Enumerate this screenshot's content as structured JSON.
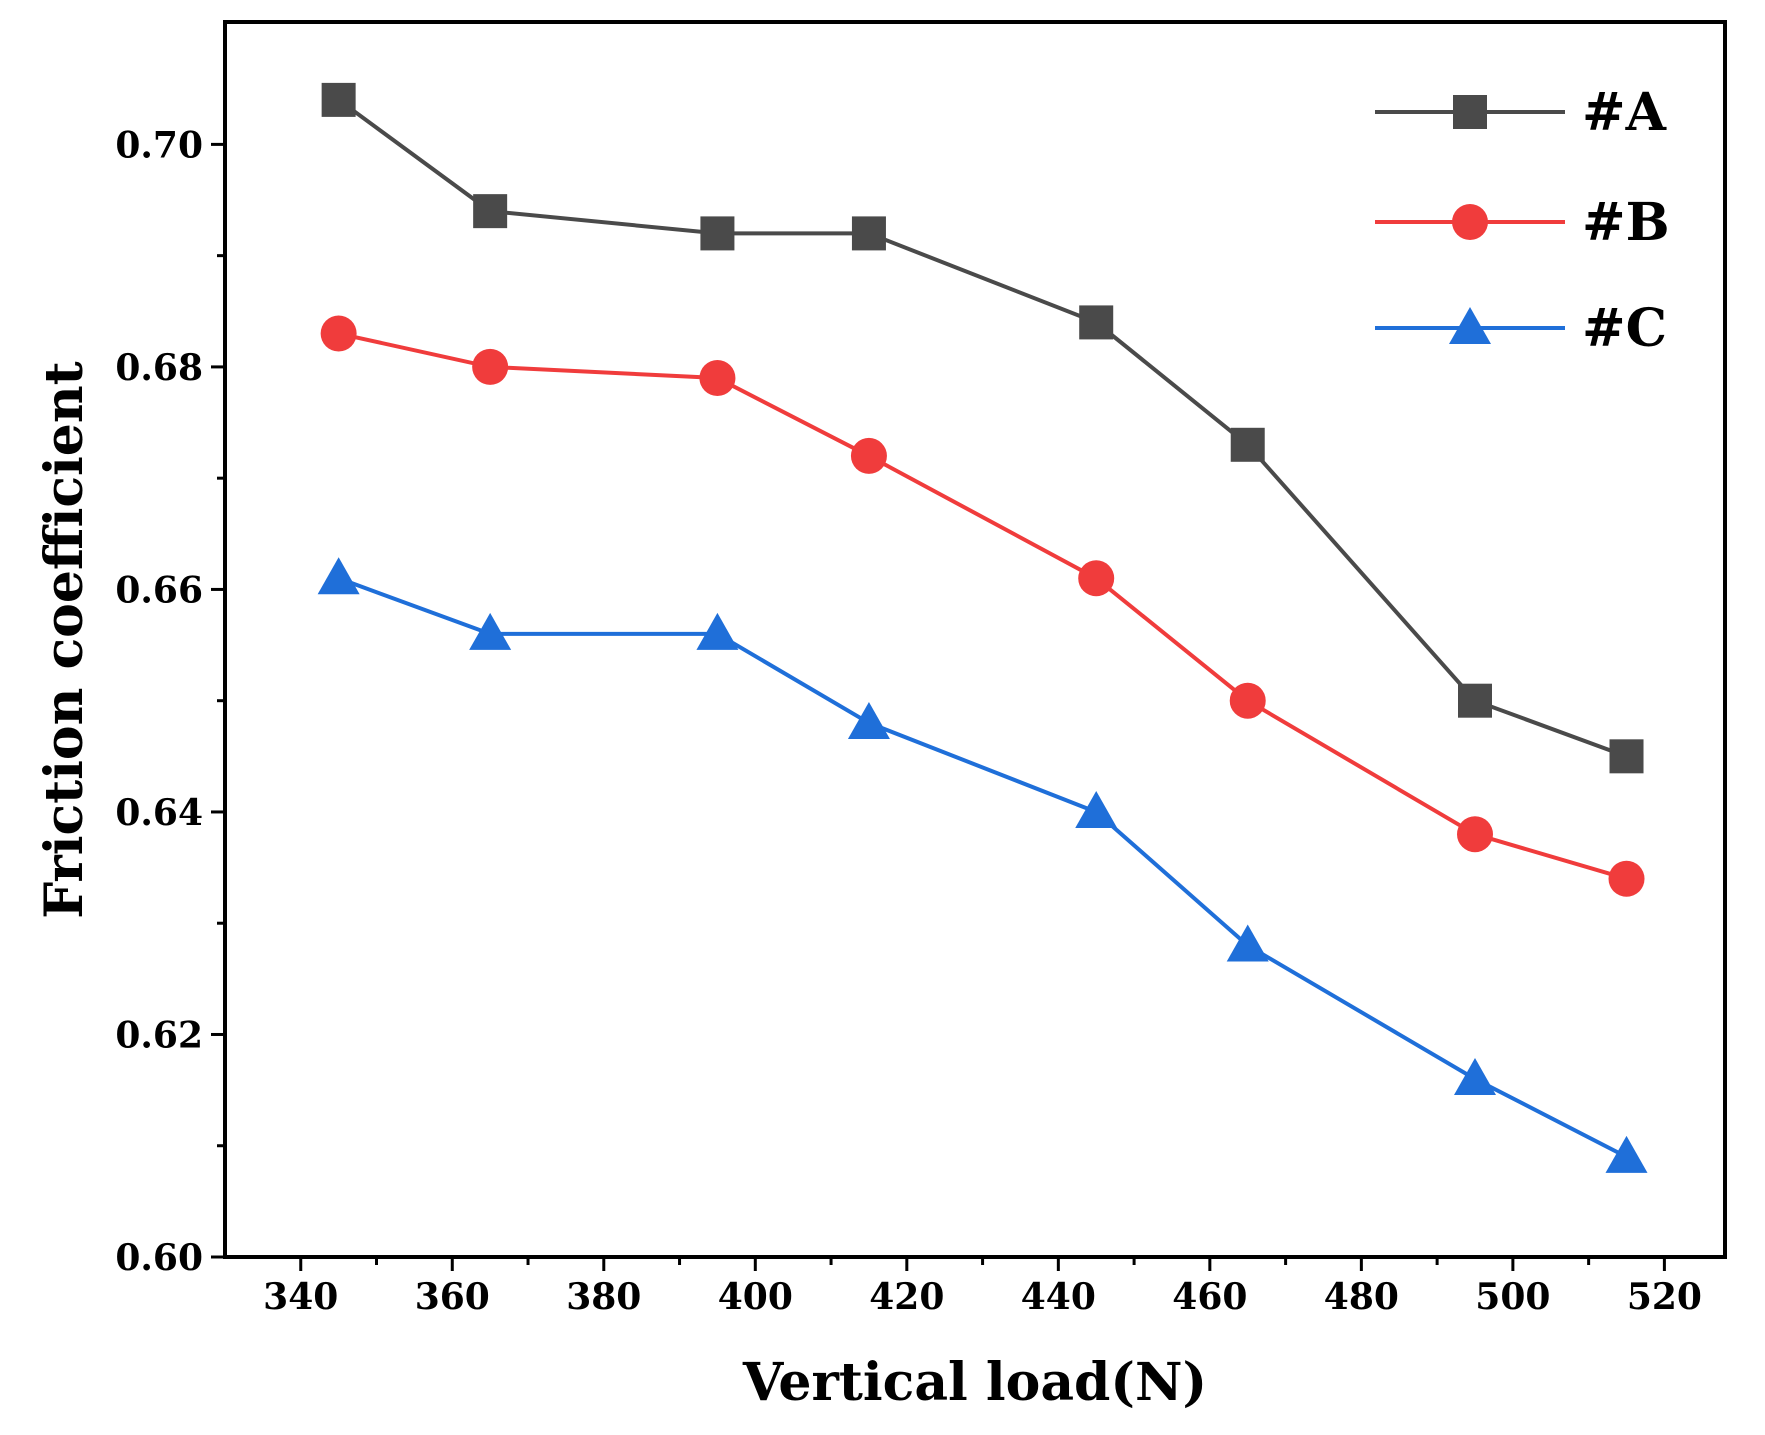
{
  "chart_data": {
    "type": "line",
    "title": "",
    "xlabel": "Vertical load(N)",
    "ylabel": "Friction coefficient",
    "xlim": [
      330,
      528
    ],
    "ylim": [
      0.6,
      0.711
    ],
    "xticks": [
      340,
      360,
      380,
      400,
      420,
      440,
      460,
      480,
      500,
      520
    ],
    "xtick_labels": [
      "340",
      "360",
      "380",
      "400",
      "420",
      "440",
      "460",
      "480",
      "500",
      "520"
    ],
    "yticks": [
      0.6,
      0.62,
      0.64,
      0.66,
      0.68,
      0.7
    ],
    "ytick_labels": [
      "0.60",
      "0.62",
      "0.64",
      "0.66",
      "0.68",
      "0.70"
    ],
    "grid": false,
    "legend_position": "top-right",
    "x": [
      345,
      365,
      395,
      415,
      445,
      465,
      495,
      515
    ],
    "series": [
      {
        "name": "#A",
        "color": "#4a4a4a",
        "marker": "square",
        "values": [
          0.704,
          0.694,
          0.692,
          0.692,
          0.684,
          0.673,
          0.65,
          0.645
        ]
      },
      {
        "name": "#B",
        "color": "#f03c3c",
        "marker": "circle",
        "values": [
          0.683,
          0.68,
          0.679,
          0.672,
          0.661,
          0.65,
          0.638,
          0.634
        ]
      },
      {
        "name": "#C",
        "color": "#1f6fd9",
        "marker": "triangle",
        "values": [
          0.661,
          0.656,
          0.656,
          0.648,
          0.64,
          0.628,
          0.616,
          0.609
        ]
      }
    ]
  }
}
